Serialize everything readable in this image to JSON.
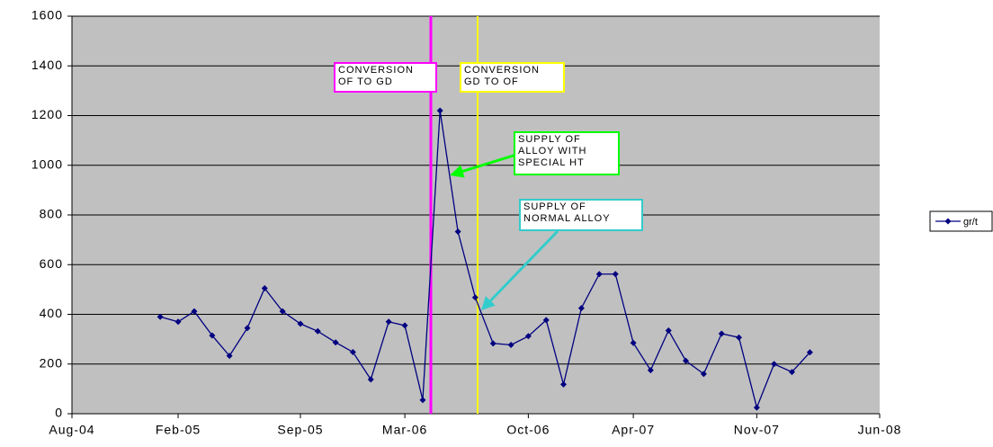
{
  "chart_data": {
    "type": "line",
    "x": [
      "Jan-05",
      "Feb-05",
      "Mar-05",
      "Apr-05",
      "May-05",
      "Jun-05",
      "Jul-05",
      "Aug-05",
      "Sep-05",
      "Oct-05",
      "Nov-05",
      "Dec-05",
      "Jan-06",
      "Feb-06",
      "Mar-06",
      "Apr-06",
      "May-06",
      "Jun-06",
      "Jul-06",
      "Aug-06",
      "Sep-06",
      "Oct-06",
      "Nov-06",
      "Dec-06",
      "Jan-07",
      "Feb-07",
      "Mar-07",
      "Apr-07",
      "May-07",
      "Jun-07",
      "Jul-07",
      "Aug-07",
      "Sep-07",
      "Oct-07",
      "Nov-07",
      "Dec-07",
      "Jan-08",
      "Feb-08"
    ],
    "series": [
      {
        "name": "gr/t",
        "color": "#000080",
        "values": [
          390,
          370,
          412,
          315,
          233,
          345,
          505,
          412,
          362,
          332,
          287,
          248,
          138,
          370,
          355,
          55,
          1220,
          733,
          468,
          283,
          277,
          312,
          377,
          118,
          425,
          562,
          562,
          285,
          175,
          335,
          213,
          160,
          322,
          307,
          25,
          200,
          168,
          247
        ]
      }
    ],
    "xlim": [
      "Aug-04",
      "Jun-08"
    ],
    "xticks": [
      "Aug-04",
      "Feb-05",
      "Sep-05",
      "Mar-06",
      "Oct-06",
      "Apr-07",
      "Nov-07",
      "Jun-08"
    ],
    "ylim": [
      0,
      1600
    ],
    "yticks": [
      0,
      200,
      400,
      600,
      800,
      1000,
      1200,
      1400,
      1600
    ],
    "grid": true,
    "legend": "right",
    "annotations": [
      {
        "lines": [
          "CONVERSION",
          "OF TO GD"
        ],
        "color": "#ff00ff"
      },
      {
        "lines": [
          "CONVERSION",
          "GD TO OF"
        ],
        "color": "#ffff00"
      },
      {
        "lines": [
          "SUPPLY OF",
          "ALLOY WITH",
          "SPECIAL HT"
        ],
        "color": "#00ff00"
      },
      {
        "lines": [
          "SUPPLY OF",
          "NORMAL ALLOY"
        ],
        "color": "#33cccc"
      }
    ]
  }
}
